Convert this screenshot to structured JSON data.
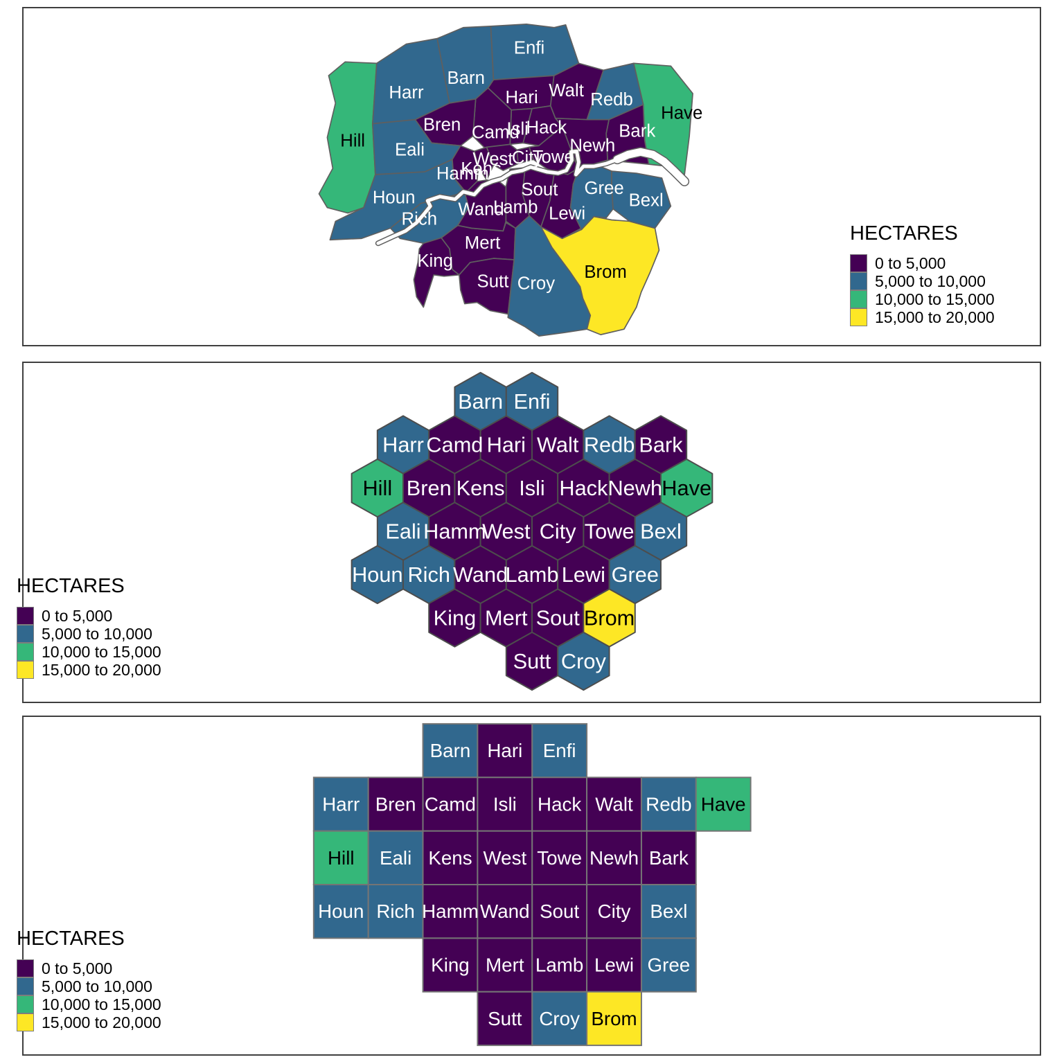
{
  "legend": {
    "title": "HECTARES",
    "items": [
      {
        "label": "0 to 5,000",
        "color": "#440154"
      },
      {
        "label": "5,000 to 10,000",
        "color": "#31688E"
      },
      {
        "label": "10,000 to 15,000",
        "color": "#35B779"
      },
      {
        "label": "15,000 to 20,000",
        "color": "#FDE725"
      }
    ]
  },
  "boroughs": [
    {
      "id": "Hill",
      "label": "Hill",
      "category": 2
    },
    {
      "id": "Harr",
      "label": "Harr",
      "category": 1
    },
    {
      "id": "Barn",
      "label": "Barn",
      "category": 1
    },
    {
      "id": "Enfi",
      "label": "Enfi",
      "category": 1
    },
    {
      "id": "Hari",
      "label": "Hari",
      "category": 0
    },
    {
      "id": "Walt",
      "label": "Walt",
      "category": 0
    },
    {
      "id": "Redb",
      "label": "Redb",
      "category": 1
    },
    {
      "id": "Have",
      "label": "Have",
      "category": 2
    },
    {
      "id": "Bark",
      "label": "Bark",
      "category": 0
    },
    {
      "id": "Newh",
      "label": "Newh",
      "category": 0
    },
    {
      "id": "Hack",
      "label": "Hack",
      "category": 0
    },
    {
      "id": "Isli",
      "label": "Isli",
      "category": 0
    },
    {
      "id": "Camd",
      "label": "Camd",
      "category": 0
    },
    {
      "id": "Bren",
      "label": "Bren",
      "category": 0
    },
    {
      "id": "Eali",
      "label": "Eali",
      "category": 1
    },
    {
      "id": "Houn",
      "label": "Houn",
      "category": 1
    },
    {
      "id": "Rich",
      "label": "Rich",
      "category": 1
    },
    {
      "id": "King",
      "label": "King",
      "category": 0
    },
    {
      "id": "Mert",
      "label": "Mert",
      "category": 0
    },
    {
      "id": "Sutt",
      "label": "Sutt",
      "category": 0
    },
    {
      "id": "Croy",
      "label": "Croy",
      "category": 1
    },
    {
      "id": "Brom",
      "label": "Brom",
      "category": 3
    },
    {
      "id": "Lewi",
      "label": "Lewi",
      "category": 0
    },
    {
      "id": "Gree",
      "label": "Gree",
      "category": 1
    },
    {
      "id": "Bexl",
      "label": "Bexl",
      "category": 1
    },
    {
      "id": "Sout",
      "label": "Sout",
      "category": 0
    },
    {
      "id": "Lamb",
      "label": "Lamb",
      "category": 0
    },
    {
      "id": "Wand",
      "label": "Wand",
      "category": 0
    },
    {
      "id": "Hamm",
      "label": "Hamm",
      "category": 0
    },
    {
      "id": "Kens",
      "label": "Kens",
      "category": 0
    },
    {
      "id": "West",
      "label": "West",
      "category": 0
    },
    {
      "id": "City",
      "label": "City",
      "category": 0
    },
    {
      "id": "Towe",
      "label": "Towe",
      "category": 0
    }
  ],
  "chart_data": {
    "type": "choropleth",
    "title": "",
    "legend_title": "HECTARES",
    "legend_position": [
      "right",
      "left",
      "left"
    ],
    "bins": [
      "0 to 5,000",
      "5,000 to 10,000",
      "10,000 to 15,000",
      "15,000 to 20,000"
    ],
    "bin_colors": [
      "#440154",
      "#31688E",
      "#35B779",
      "#FDE725"
    ],
    "panels": [
      "geographic map",
      "hexagon cartogram",
      "square cartogram"
    ],
    "values_by_bin": {
      "0 to 5,000": [
        "Hari",
        "Walt",
        "Bark",
        "Newh",
        "Hack",
        "Isli",
        "Camd",
        "Bren",
        "King",
        "Mert",
        "Sutt",
        "Lewi",
        "Sout",
        "Lamb",
        "Wand",
        "Hamm",
        "Kens",
        "West",
        "City",
        "Towe"
      ],
      "5,000 to 10,000": [
        "Harr",
        "Barn",
        "Enfi",
        "Redb",
        "Eali",
        "Houn",
        "Rich",
        "Croy",
        "Gree",
        "Bexl"
      ],
      "10,000 to 15,000": [
        "Hill",
        "Have"
      ],
      "15,000 to 20,000": [
        "Brom"
      ]
    }
  }
}
